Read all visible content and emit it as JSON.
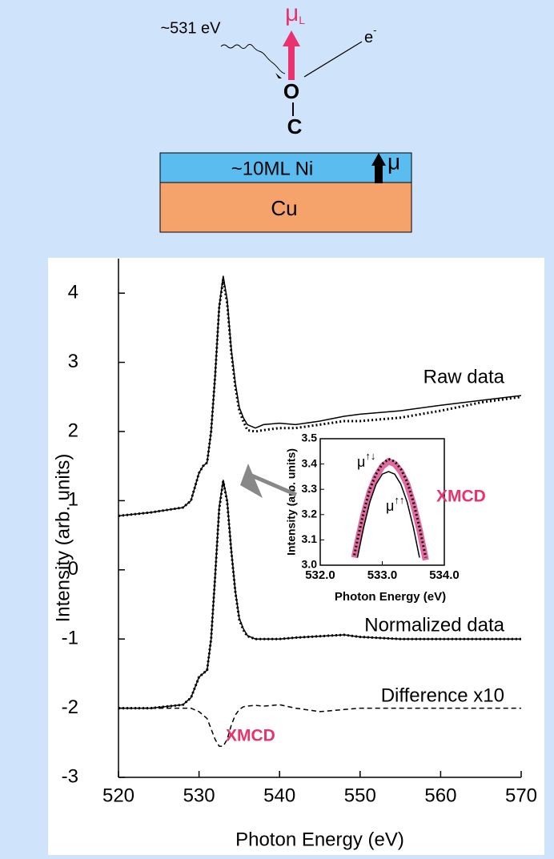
{
  "diagram": {
    "photon": "~531 eV",
    "moment_symbol": "μ",
    "moment_subscript": "L",
    "electron": "e",
    "electron_charge": "-",
    "oxygen": "O",
    "carbon": "C",
    "nickel_layer": "~10ML Ni",
    "nickel_moment": "μ",
    "substrate": "Cu"
  },
  "chart_data": [
    {
      "type": "line",
      "ylabel": "Intensity  (arb. units)",
      "xlabel": "Photon Energy  (eV)",
      "xlim": [
        520,
        570
      ],
      "ylim": [
        -3,
        4.5
      ],
      "xticks": [
        520,
        530,
        540,
        550,
        560,
        570
      ],
      "yticks": [
        -3,
        -2,
        -1,
        0,
        1,
        2,
        3,
        4
      ],
      "x": [
        520,
        524,
        528,
        529,
        530,
        530.5,
        531,
        531.5,
        532,
        532.5,
        533,
        533.5,
        534,
        534.5,
        535,
        535.5,
        536,
        537,
        538,
        540,
        542,
        545,
        548,
        550,
        555,
        560,
        565,
        570
      ],
      "series": [
        {
          "color": "#000000",
          "style": "solid",
          "values": [
            0.78,
            0.83,
            0.9,
            1.0,
            1.4,
            1.5,
            1.55,
            2.0,
            2.8,
            3.8,
            4.25,
            3.9,
            3.2,
            2.7,
            2.35,
            2.2,
            2.1,
            2.05,
            2.1,
            2.12,
            2.1,
            2.15,
            2.22,
            2.25,
            2.3,
            2.38,
            2.45,
            2.52
          ]
        },
        {
          "color": "#000000",
          "style": "dotted",
          "values": [
            0.78,
            0.83,
            0.9,
            1.0,
            1.4,
            1.5,
            1.55,
            2.0,
            2.8,
            3.8,
            4.2,
            3.85,
            3.15,
            2.65,
            2.3,
            2.15,
            2.02,
            2.0,
            2.02,
            2.05,
            2.05,
            2.1,
            2.15,
            2.15,
            2.2,
            2.3,
            2.42,
            2.5
          ]
        },
        {
          "color": "#000000",
          "style": "solid",
          "values": [
            -2.0,
            -2.0,
            -1.95,
            -1.85,
            -1.55,
            -1.5,
            -1.45,
            -1.0,
            -0.1,
            0.9,
            1.3,
            1.0,
            0.3,
            -0.3,
            -0.7,
            -0.85,
            -0.95,
            -1.0,
            -1.0,
            -1.0,
            -0.98,
            -0.96,
            -0.94,
            -0.97,
            -1.0,
            -1.0,
            -1.0,
            -1.0
          ]
        },
        {
          "color": "#000000",
          "style": "dotted",
          "values": [
            -2.0,
            -2.0,
            -1.95,
            -1.85,
            -1.55,
            -1.5,
            -1.45,
            -1.0,
            -0.1,
            0.88,
            1.28,
            0.98,
            0.28,
            -0.32,
            -0.72,
            -0.87,
            -0.96,
            -1.0,
            -1.0,
            -1.0,
            -0.98,
            -0.96,
            -0.94,
            -0.97,
            -1.0,
            -1.0,
            -1.0,
            -1.0
          ]
        },
        {
          "color": "#000000",
          "style": "dashed",
          "values": [
            -2.0,
            -2.0,
            -2.0,
            -2.0,
            -2.05,
            -2.1,
            -2.15,
            -2.3,
            -2.45,
            -2.55,
            -2.55,
            -2.45,
            -2.25,
            -2.1,
            -2.02,
            -1.98,
            -1.97,
            -1.96,
            -1.97,
            -1.95,
            -2.0,
            -2.05,
            -2.02,
            -2.0,
            -2.0,
            -2.0,
            -2.0,
            -2.0
          ]
        }
      ],
      "annotations": [
        {
          "text": "Raw data",
          "color": "#000000"
        },
        {
          "text": "Normalized data",
          "color": "#000000"
        },
        {
          "text": "Difference  x10",
          "color": "#000000"
        },
        {
          "text": "XMCD",
          "color": "#e8336e"
        }
      ]
    },
    {
      "type": "line",
      "ylabel": "Intensity (arb. units)",
      "xlabel": "Photon Energy  (eV)",
      "xlim": [
        532,
        534
      ],
      "ylim": [
        3.0,
        3.5
      ],
      "xticks": [
        {
          "value": 532,
          "label": "532.0"
        },
        {
          "value": 533,
          "label": "533.0"
        },
        {
          "value": 534,
          "label": "534.0"
        }
      ],
      "yticks": [
        {
          "value": 3,
          "label": "3.0"
        },
        3.1,
        3.2,
        3.3,
        3.4,
        3.5
      ],
      "series": [
        {
          "color": "#000000",
          "band_color": "#e26aa0",
          "style": "dotted",
          "x": [
            532.55,
            532.6,
            532.7,
            532.8,
            532.9,
            533.0,
            533.1,
            533.2,
            533.3,
            533.4,
            533.5,
            533.6,
            533.7
          ],
          "values": [
            3.04,
            3.1,
            3.21,
            3.3,
            3.36,
            3.4,
            3.42,
            3.41,
            3.38,
            3.33,
            3.25,
            3.15,
            3.03
          ]
        },
        {
          "color": "#000000",
          "style": "solid",
          "x": [
            532.6,
            532.7,
            532.8,
            532.9,
            533.0,
            533.1,
            533.2,
            533.3,
            533.4,
            533.5,
            533.6
          ],
          "values": [
            3.03,
            3.15,
            3.25,
            3.32,
            3.36,
            3.37,
            3.36,
            3.32,
            3.25,
            3.15,
            3.03
          ]
        }
      ],
      "annotations": [
        {
          "symbol": "μ",
          "arrows": "↑↓",
          "color": "#000000"
        },
        {
          "symbol": "μ",
          "arrows": "↑↑",
          "color": "#000000"
        },
        {
          "text": "XMCD",
          "color": "#e8336e"
        }
      ]
    }
  ]
}
